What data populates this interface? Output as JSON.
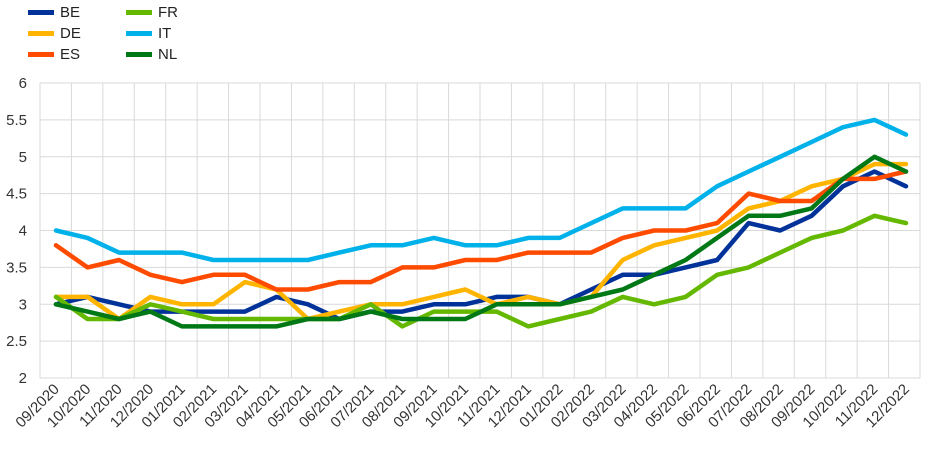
{
  "chart_data": {
    "type": "line",
    "title": "",
    "xlabel": "",
    "ylabel": "",
    "ylim": [
      2,
      6
    ],
    "yticks": [
      "2",
      "2.5",
      "3",
      "3.5",
      "4",
      "4.5",
      "5",
      "5.5",
      "6"
    ],
    "grid": true,
    "legend_position": "top-left",
    "categories": [
      "09/2020",
      "10/2020",
      "11/2020",
      "12/2020",
      "01/2021",
      "02/2021",
      "03/2021",
      "04/2021",
      "05/2021",
      "06/2021",
      "07/2021",
      "08/2021",
      "09/2021",
      "10/2021",
      "11/2021",
      "12/2021",
      "01/2022",
      "02/2022",
      "03/2022",
      "04/2022",
      "05/2022",
      "06/2022",
      "07/2022",
      "08/2022",
      "09/2022",
      "10/2022",
      "11/2022",
      "12/2022"
    ],
    "series": [
      {
        "name": "BE",
        "color": "#003299",
        "values": [
          3.0,
          3.1,
          3.0,
          2.9,
          2.9,
          2.9,
          2.9,
          3.1,
          3.0,
          2.8,
          2.9,
          2.9,
          3.0,
          3.0,
          3.1,
          3.1,
          3.0,
          3.2,
          3.4,
          3.4,
          3.5,
          3.6,
          4.1,
          4.0,
          4.2,
          4.6,
          4.8,
          4.6
        ]
      },
      {
        "name": "DE",
        "color": "#FFB400",
        "values": [
          3.1,
          3.1,
          2.8,
          3.1,
          3.0,
          3.0,
          3.3,
          3.2,
          2.8,
          2.9,
          3.0,
          3.0,
          3.1,
          3.2,
          3.0,
          3.1,
          3.0,
          3.1,
          3.6,
          3.8,
          3.9,
          4.0,
          4.3,
          4.4,
          4.6,
          4.7,
          4.9,
          4.9
        ]
      },
      {
        "name": "ES",
        "color": "#FF4B00",
        "values": [
          3.8,
          3.5,
          3.6,
          3.4,
          3.3,
          3.4,
          3.4,
          3.2,
          3.2,
          3.3,
          3.3,
          3.5,
          3.5,
          3.6,
          3.6,
          3.7,
          3.7,
          3.7,
          3.9,
          4.0,
          4.0,
          4.1,
          4.5,
          4.4,
          4.4,
          4.7,
          4.7,
          4.8
        ]
      },
      {
        "name": "FR",
        "color": "#65B800",
        "values": [
          3.1,
          2.8,
          2.8,
          3.0,
          2.9,
          2.8,
          2.8,
          2.8,
          2.8,
          2.8,
          3.0,
          2.7,
          2.9,
          2.9,
          2.9,
          2.7,
          2.8,
          2.9,
          3.1,
          3.0,
          3.1,
          3.4,
          3.5,
          3.7,
          3.9,
          4.0,
          4.2,
          4.1
        ]
      },
      {
        "name": "IT",
        "color": "#00B1EA",
        "values": [
          4.0,
          3.9,
          3.7,
          3.7,
          3.7,
          3.6,
          3.6,
          3.6,
          3.6,
          3.7,
          3.8,
          3.8,
          3.9,
          3.8,
          3.8,
          3.9,
          3.9,
          4.1,
          4.3,
          4.3,
          4.3,
          4.6,
          4.8,
          5.0,
          5.2,
          5.4,
          5.5,
          5.3
        ]
      },
      {
        "name": "NL",
        "color": "#007816",
        "values": [
          3.0,
          2.9,
          2.8,
          2.9,
          2.7,
          2.7,
          2.7,
          2.7,
          2.8,
          2.8,
          2.9,
          2.8,
          2.8,
          2.8,
          3.0,
          3.0,
          3.0,
          3.1,
          3.2,
          3.4,
          3.6,
          3.9,
          4.2,
          4.2,
          4.3,
          4.7,
          5.0,
          4.8
        ]
      }
    ]
  }
}
